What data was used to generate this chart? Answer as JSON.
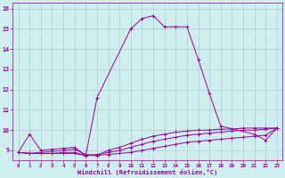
{
  "xlabel": "Windchill (Refroidissement éolien,°C)",
  "bg_color": "#ceeef0",
  "line_color": "#990099",
  "grid_color": "#b0c8cc",
  "xlim": [
    -0.5,
    23.5
  ],
  "ylim": [
    8.5,
    16.3
  ],
  "yticks": [
    9,
    10,
    11,
    12,
    13,
    14,
    15,
    16
  ],
  "xticks": [
    0,
    1,
    2,
    3,
    4,
    5,
    6,
    7,
    8,
    9,
    10,
    11,
    12,
    13,
    14,
    15,
    16,
    17,
    18,
    19,
    20,
    21,
    22,
    23
  ],
  "curves": [
    {
      "x": [
        0,
        1,
        2,
        3,
        4,
        5,
        6,
        7,
        10,
        11,
        12,
        13,
        14,
        15,
        16,
        17,
        18,
        21,
        22,
        23
      ],
      "y": [
        8.9,
        9.8,
        9.0,
        9.05,
        9.1,
        9.15,
        8.75,
        11.6,
        15.0,
        15.5,
        15.65,
        15.1,
        15.1,
        15.1,
        13.5,
        11.8,
        10.2,
        9.8,
        9.5,
        10.1
      ]
    },
    {
      "x": [
        0,
        1,
        2,
        3,
        4,
        5,
        6,
        7,
        8,
        9,
        10,
        11,
        12,
        13,
        14,
        15,
        16,
        17,
        18,
        19,
        20,
        21,
        22,
        23
      ],
      "y": [
        8.9,
        8.85,
        8.85,
        8.85,
        8.9,
        8.9,
        8.75,
        8.8,
        8.9,
        9.0,
        9.15,
        9.3,
        9.45,
        9.55,
        9.65,
        9.75,
        9.8,
        9.85,
        9.9,
        9.95,
        10.0,
        10.0,
        10.05,
        10.1
      ]
    },
    {
      "x": [
        0,
        1,
        2,
        3,
        4,
        5,
        6,
        7,
        8,
        9,
        10,
        11,
        12,
        13,
        14,
        15,
        16,
        17,
        18,
        19,
        20,
        21,
        22,
        23
      ],
      "y": [
        8.9,
        8.85,
        8.9,
        8.95,
        9.0,
        9.05,
        8.8,
        8.75,
        9.0,
        9.15,
        9.35,
        9.55,
        9.7,
        9.8,
        9.9,
        9.95,
        10.0,
        10.0,
        10.05,
        10.05,
        10.1,
        10.1,
        10.1,
        10.1
      ]
    },
    {
      "x": [
        0,
        1,
        2,
        3,
        4,
        5,
        6,
        7,
        8,
        9,
        10,
        11,
        12,
        13,
        14,
        15,
        16,
        17,
        18,
        19,
        20,
        21,
        22,
        23
      ],
      "y": [
        8.9,
        8.85,
        8.85,
        8.85,
        8.85,
        8.85,
        8.75,
        8.75,
        8.8,
        8.85,
        8.9,
        9.0,
        9.1,
        9.2,
        9.3,
        9.4,
        9.45,
        9.5,
        9.55,
        9.6,
        9.65,
        9.7,
        9.75,
        10.1
      ]
    }
  ]
}
